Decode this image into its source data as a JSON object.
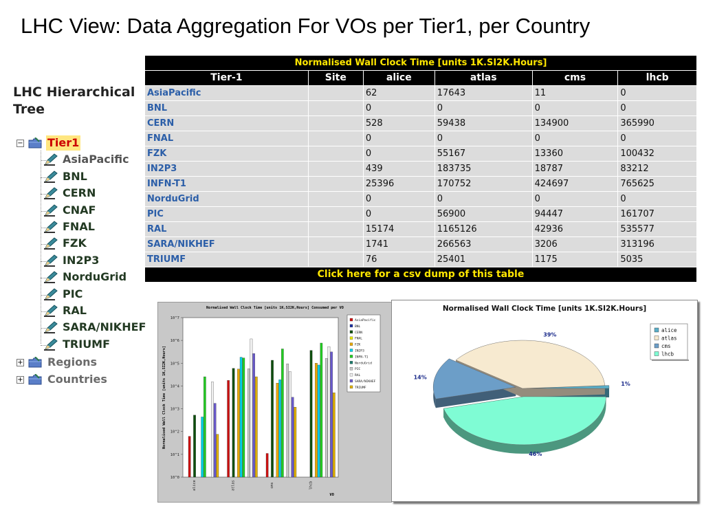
{
  "slide": {
    "title": "LHC View: Data Aggregation For VOs per Tier1, per Country"
  },
  "tree": {
    "heading_line1": "LHC Hierarchical",
    "heading_line2": "Tree",
    "root": {
      "label": "Tier1",
      "toggle": "−"
    },
    "sites": [
      "AsiaPacific",
      "BNL",
      "CERN",
      "CNAF",
      "FNAL",
      "FZK",
      "IN2P3",
      "NorduGrid",
      "PIC",
      "RAL",
      "SARA/NIKHEF",
      "TRIUMF"
    ],
    "groups": [
      {
        "label": "Regions",
        "toggle": "+"
      },
      {
        "label": "Countries",
        "toggle": "+"
      }
    ],
    "colors": {
      "root_text": "#cc0000",
      "root_highlight": "#ffe680",
      "site_text": "#233a23",
      "group_text": "#6b6b6b"
    },
    "icons": {
      "folder": "folder-icon",
      "leaf": "pencil-icon"
    }
  },
  "table": {
    "caption": "Normalised Wall Clock Time [units 1K.SI2K.Hours]",
    "headers": [
      "Tier-1",
      "Site",
      "alice",
      "atlas",
      "cms",
      "lhcb"
    ],
    "rows": [
      [
        "AsiaPacific",
        "",
        "62",
        "17643",
        "11",
        "0"
      ],
      [
        "BNL",
        "",
        "0",
        "0",
        "0",
        "0"
      ],
      [
        "CERN",
        "",
        "528",
        "59438",
        "134900",
        "365990"
      ],
      [
        "FNAL",
        "",
        "0",
        "0",
        "0",
        "0"
      ],
      [
        "FZK",
        "",
        "0",
        "55167",
        "13360",
        "100432"
      ],
      [
        "IN2P3",
        "",
        "439",
        "183735",
        "18787",
        "83212"
      ],
      [
        "INFN-T1",
        "",
        "25396",
        "170752",
        "424697",
        "765625"
      ],
      [
        "NorduGrid",
        "",
        "0",
        "0",
        "0",
        "0"
      ],
      [
        "PIC",
        "",
        "0",
        "56900",
        "94447",
        "161707"
      ],
      [
        "RAL",
        "",
        "15174",
        "1165126",
        "42936",
        "535577"
      ],
      [
        "SARA/NIKHEF",
        "",
        "1741",
        "266563",
        "3206",
        "313196"
      ],
      [
        "TRIUMF",
        "",
        "76",
        "25401",
        "1175",
        "5035"
      ]
    ],
    "footer": "Click here for a csv dump of this table",
    "colors": {
      "header_bg": "#000000",
      "caption_text": "#ffe600",
      "cell_bg": "#dcdcdc",
      "link_text": "#2b5ea8"
    }
  },
  "chart_data": [
    {
      "type": "bar",
      "title": "Normalised Wall Clock Time [units 1K,SI2K,Hours] Consumed per VO",
      "ylabel": "Normalised Wall Clock Time [units 1K,SI2K,Hours]",
      "xlabel": "VO",
      "log_scale": true,
      "ylim": [
        1,
        10000000
      ],
      "yticks": [
        "10^0",
        "10^1",
        "10^2",
        "10^3",
        "10^4",
        "10^5",
        "10^6",
        "10^7"
      ],
      "categories": [
        "alice",
        "atlas",
        "cms",
        "lhcb"
      ],
      "series": [
        {
          "name": "AsiaPacific",
          "color": "#cc1111",
          "values": [
            62,
            17643,
            11,
            0
          ]
        },
        {
          "name": "BNL",
          "color": "#1a2fa0",
          "values": [
            0,
            0,
            0,
            0
          ]
        },
        {
          "name": "CERN",
          "color": "#0e4f0e",
          "values": [
            528,
            59438,
            134900,
            365990
          ]
        },
        {
          "name": "FNAL",
          "color": "#e8e800",
          "values": [
            0,
            0,
            0,
            0
          ]
        },
        {
          "name": "FZK",
          "color": "#e8a800",
          "values": [
            0,
            55167,
            13360,
            100432
          ]
        },
        {
          "name": "IN2P3",
          "color": "#00d2e8",
          "values": [
            439,
            183735,
            18787,
            83212
          ]
        },
        {
          "name": "INFN-T1",
          "color": "#22cc22",
          "values": [
            25396,
            170752,
            424697,
            765625
          ]
        },
        {
          "name": "NorduGrid",
          "color": "#1a7a6a",
          "values": [
            0,
            0,
            0,
            0
          ]
        },
        {
          "name": "PIC",
          "color": "#c8c8c8",
          "values": [
            0,
            56900,
            94447,
            161707
          ]
        },
        {
          "name": "RAL",
          "color": "#f0f0f0",
          "values": [
            15174,
            1165126,
            42936,
            535577
          ]
        },
        {
          "name": "SARA/NIKHEF",
          "color": "#6a5acd",
          "values": [
            1741,
            266563,
            3206,
            313196
          ]
        },
        {
          "name": "TRIUMF",
          "color": "#e0b000",
          "values": [
            76,
            25401,
            1175,
            5035
          ]
        }
      ],
      "legend": "top-right",
      "grid": false
    },
    {
      "type": "pie",
      "title": "Normalised Wall Clock Time [units 1K.SI2K.Hours]",
      "labels": [
        "alice",
        "atlas",
        "cms",
        "lhcb"
      ],
      "values": [
        1,
        39,
        14,
        46
      ],
      "slice_labels": [
        "1%",
        "39%",
        "14%",
        "46%"
      ],
      "colors": [
        "#5aaec8",
        "#f7ead0",
        "#6c9ec8",
        "#7ffcd4"
      ],
      "legend": "top-right"
    }
  ]
}
